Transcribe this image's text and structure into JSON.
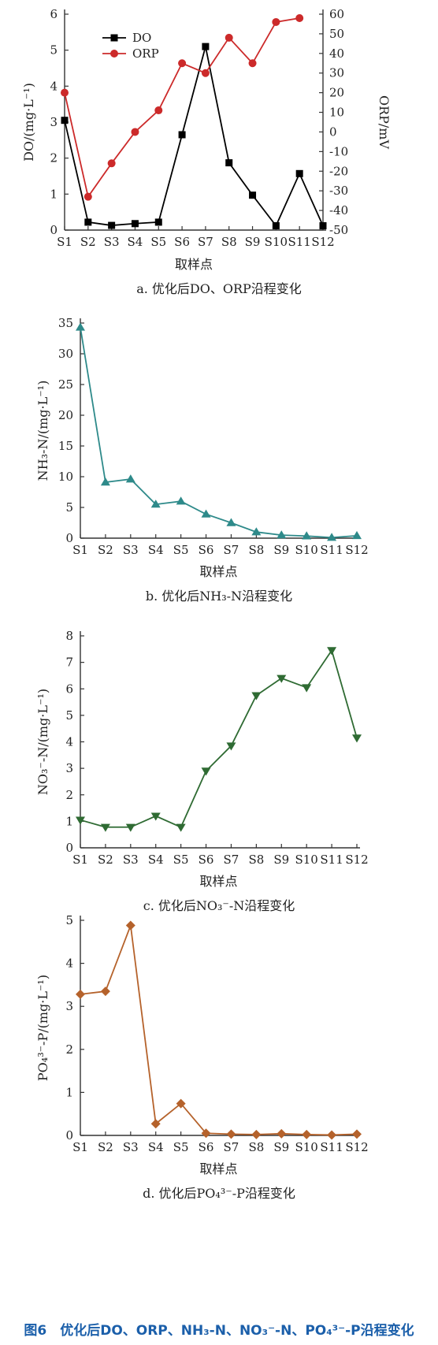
{
  "figure_caption": "图6　优化后DO、ORP、NH₃-N、NO₃⁻-N、PO₄³⁻-P沿程变化",
  "chart_data": [
    {
      "id": "a",
      "type": "line",
      "caption": "a. 优化后DO、ORP沿程变化",
      "xlabel": "取样点",
      "ylabel": "DO/(mg·L⁻¹)",
      "y2label": "ORP/mV",
      "categories": [
        "S1",
        "S2",
        "S3",
        "S4",
        "S5",
        "S6",
        "S7",
        "S8",
        "S9",
        "S10",
        "S11",
        "S12"
      ],
      "ylim": [
        0,
        6
      ],
      "yticks": [
        0,
        1,
        2,
        3,
        4,
        5,
        6
      ],
      "y2lim": [
        -50,
        60
      ],
      "y2ticks": [
        -50,
        -40,
        -30,
        -20,
        -10,
        0,
        10,
        20,
        30,
        40,
        50,
        60
      ],
      "legend_position": "top-left",
      "series": [
        {
          "name": "DO",
          "axis": "left",
          "color": "#000000",
          "marker": "square",
          "values": [
            3.05,
            0.22,
            0.13,
            0.18,
            0.22,
            2.65,
            5.1,
            1.87,
            0.97,
            0.12,
            1.57,
            0.12
          ]
        },
        {
          "name": "ORP",
          "axis": "right",
          "color": "#cc2a2a",
          "marker": "circle",
          "values": [
            20,
            -33,
            -16,
            0,
            11,
            35,
            30,
            48,
            35,
            56,
            58,
            null
          ]
        }
      ]
    },
    {
      "id": "b",
      "type": "line",
      "caption": "b. 优化后NH₃-N沿程变化",
      "xlabel": "取样点",
      "ylabel": "NH₃-N/(mg·L⁻¹)",
      "categories": [
        "S1",
        "S2",
        "S3",
        "S4",
        "S5",
        "S6",
        "S7",
        "S8",
        "S9",
        "S10",
        "S11",
        "S12"
      ],
      "ylim": [
        0,
        35
      ],
      "yticks": [
        0,
        5,
        10,
        15,
        20,
        25,
        30,
        35
      ],
      "series": [
        {
          "color": "#2e8a8a",
          "marker": "triangle-up",
          "values": [
            34.3,
            9.1,
            9.6,
            5.5,
            6.0,
            3.9,
            2.5,
            1.0,
            0.5,
            0.35,
            0.1,
            0.4
          ]
        }
      ]
    },
    {
      "id": "c",
      "type": "line",
      "caption": "c. 优化后NO₃⁻-N沿程变化",
      "xlabel": "取样点",
      "ylabel": "NO₃⁻-N/(mg·L⁻¹)",
      "categories": [
        "S1",
        "S2",
        "S3",
        "S4",
        "S5",
        "S6",
        "S7",
        "S8",
        "S9",
        "S10",
        "S11",
        "S12"
      ],
      "ylim": [
        0,
        8
      ],
      "yticks": [
        0,
        1,
        2,
        3,
        4,
        5,
        6,
        7,
        8
      ],
      "series": [
        {
          "color": "#2f6b33",
          "marker": "triangle-down",
          "values": [
            1.05,
            0.78,
            0.78,
            1.2,
            0.78,
            2.9,
            3.85,
            5.75,
            6.4,
            6.05,
            7.45,
            4.15
          ]
        }
      ]
    },
    {
      "id": "d",
      "type": "line",
      "caption": "d. 优化后PO₄³⁻-P沿程变化",
      "xlabel": "取样点",
      "ylabel": "PO₄³⁻-P/(mg·L⁻¹)",
      "categories": [
        "S1",
        "S2",
        "S3",
        "S4",
        "S5",
        "S6",
        "S7",
        "S8",
        "S9",
        "S10",
        "S11",
        "S12"
      ],
      "ylim": [
        0,
        5
      ],
      "yticks": [
        0,
        1,
        2,
        3,
        4,
        5
      ],
      "series": [
        {
          "color": "#b5622b",
          "marker": "diamond",
          "values": [
            3.28,
            3.35,
            4.88,
            0.27,
            0.74,
            0.05,
            0.03,
            0.02,
            0.04,
            0.02,
            0.01,
            0.03
          ]
        }
      ]
    }
  ]
}
